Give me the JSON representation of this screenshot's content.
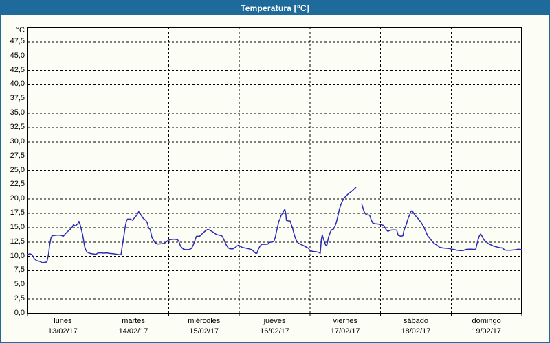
{
  "window": {
    "title": "Temperatura [°C]"
  },
  "colors": {
    "title_bar": "#1d6a9b",
    "window_border": "#1d6a9b",
    "background": "#fcfdf5",
    "title_text": "#ffffff",
    "line": "#2a2ab4",
    "grid": "#000000"
  },
  "chart_data": {
    "type": "line",
    "title": "Temperatura [°C]",
    "y_axis": {
      "unit_label": "°C",
      "tick_labels": [
        "47,5",
        "45,0",
        "42,5",
        "40,0",
        "37,5",
        "35,0",
        "32,5",
        "30,0",
        "27,5",
        "25,0",
        "22,5",
        "20,0",
        "17,5",
        "15,0",
        "12,5",
        "10,0",
        "7,5",
        "5,0",
        "2,5",
        "0,0"
      ],
      "range": [
        0,
        50
      ],
      "tick_step": 2.5,
      "gridlines": "dashed"
    },
    "x_axis": {
      "range_hours": [
        0,
        168
      ],
      "hours_per_day": 24,
      "day_gridlines": "dashed",
      "days": [
        {
          "name": "lunes",
          "date": "13/02/17"
        },
        {
          "name": "martes",
          "date": "14/02/17"
        },
        {
          "name": "miércoles",
          "date": "15/02/17"
        },
        {
          "name": "jueves",
          "date": "16/02/17"
        },
        {
          "name": "viernes",
          "date": "17/02/17"
        },
        {
          "name": "sábado",
          "date": "18/02/17"
        },
        {
          "name": "domingo",
          "date": "19/02/17"
        }
      ]
    },
    "series": [
      {
        "name": "Temperatura",
        "unit": "°C",
        "segments": [
          [
            [
              0,
              10.3
            ],
            [
              0.8,
              10.45
            ],
            [
              1.5,
              10.3
            ],
            [
              2.3,
              9.6
            ],
            [
              3.1,
              9.25
            ],
            [
              4.3,
              9.1
            ],
            [
              5.1,
              8.85
            ],
            [
              5.8,
              8.95
            ],
            [
              6.6,
              9.0
            ],
            [
              7.2,
              10.5
            ],
            [
              7.5,
              11.9
            ],
            [
              8,
              13.2
            ],
            [
              8.3,
              13.55
            ],
            [
              9,
              13.65
            ],
            [
              10,
              13.7
            ],
            [
              11,
              13.7
            ],
            [
              11.7,
              13.65
            ],
            [
              12.1,
              13.45
            ],
            [
              12.8,
              13.9
            ],
            [
              13.6,
              14.3
            ],
            [
              14.4,
              14.65
            ],
            [
              15.2,
              15.1
            ],
            [
              15.6,
              15.5
            ],
            [
              16.3,
              15.3
            ],
            [
              17.1,
              15.7
            ],
            [
              17.5,
              16.1
            ],
            [
              17.9,
              15.5
            ],
            [
              18.3,
              14.7
            ],
            [
              18.7,
              13.9
            ],
            [
              19.1,
              12.75
            ],
            [
              19.4,
              11.75
            ],
            [
              19.8,
              11.15
            ],
            [
              20.2,
              10.75
            ],
            [
              21,
              10.55
            ],
            [
              21.8,
              10.45
            ],
            [
              23.3,
              10.35
            ],
            [
              24,
              10.6
            ],
            [
              25,
              10.6
            ],
            [
              26,
              10.55
            ],
            [
              27,
              10.6
            ],
            [
              28,
              10.5
            ],
            [
              29,
              10.45
            ],
            [
              30,
              10.4
            ],
            [
              31,
              10.3
            ],
            [
              31.8,
              10.3
            ],
            [
              32.3,
              12.1
            ],
            [
              32.8,
              13.7
            ],
            [
              33.2,
              15.1
            ],
            [
              33.6,
              16.1
            ],
            [
              34,
              16.5
            ],
            [
              35,
              16.5
            ],
            [
              35.7,
              16.3
            ],
            [
              36.3,
              16.7
            ],
            [
              37,
              17.1
            ],
            [
              37.5,
              17.5
            ],
            [
              37.8,
              17.8
            ],
            [
              38.2,
              17.5
            ],
            [
              38.6,
              17.2
            ],
            [
              39,
              16.9
            ],
            [
              39.4,
              16.6
            ],
            [
              39.8,
              16.45
            ],
            [
              40.2,
              16.3
            ],
            [
              40.7,
              15.9
            ],
            [
              41.2,
              14.9
            ],
            [
              41.7,
              14.7
            ],
            [
              42.3,
              13.3
            ],
            [
              42.9,
              12.75
            ],
            [
              43.4,
              12.35
            ],
            [
              44.3,
              12.15
            ],
            [
              45.5,
              12.2
            ],
            [
              46.5,
              12.25
            ],
            [
              47.3,
              12.55
            ],
            [
              47.8,
              12.8
            ],
            [
              48.5,
              12.9
            ],
            [
              49,
              12.95
            ],
            [
              49.6,
              13.0
            ],
            [
              50.4,
              12.95
            ],
            [
              51,
              12.9
            ],
            [
              51.5,
              12.55
            ],
            [
              52,
              11.8
            ],
            [
              52.4,
              11.55
            ],
            [
              53,
              11.25
            ],
            [
              54,
              11.15
            ],
            [
              55,
              11.2
            ],
            [
              55.8,
              11.4
            ],
            [
              56.3,
              11.95
            ],
            [
              56.8,
              12.6
            ],
            [
              57.4,
              13.5
            ],
            [
              58.5,
              13.5
            ],
            [
              59.3,
              13.9
            ],
            [
              59.7,
              14.1
            ],
            [
              60.5,
              14.45
            ],
            [
              61.3,
              14.7
            ],
            [
              62,
              14.55
            ],
            [
              62.5,
              14.4
            ],
            [
              63.3,
              14.15
            ],
            [
              64.2,
              13.8
            ],
            [
              65,
              13.7
            ],
            [
              66,
              13.6
            ],
            [
              66.5,
              13.2
            ],
            [
              67.1,
              12.5
            ],
            [
              67.6,
              11.95
            ],
            [
              68.2,
              11.5
            ],
            [
              68.8,
              11.3
            ],
            [
              69.8,
              11.3
            ],
            [
              70.6,
              11.55
            ],
            [
              71.2,
              11.8
            ],
            [
              71.8,
              11.95
            ],
            [
              72.3,
              11.75
            ],
            [
              73,
              11.55
            ],
            [
              74,
              11.45
            ],
            [
              75.3,
              11.3
            ],
            [
              76.3,
              11.15
            ],
            [
              77.1,
              10.75
            ],
            [
              77.6,
              10.5
            ],
            [
              78,
              10.55
            ],
            [
              78.4,
              11.15
            ],
            [
              79,
              11.75
            ],
            [
              79.6,
              12.1
            ],
            [
              80.7,
              12.1
            ],
            [
              81.7,
              12.15
            ],
            [
              82.3,
              12.45
            ],
            [
              83.3,
              12.5
            ],
            [
              83.8,
              12.7
            ],
            [
              84.2,
              13.3
            ],
            [
              84.6,
              14.3
            ],
            [
              85,
              15.1
            ],
            [
              85.4,
              16.1
            ],
            [
              85.8,
              16.5
            ],
            [
              86.2,
              17.15
            ],
            [
              86.6,
              17.45
            ],
            [
              87,
              17.8
            ],
            [
              87.3,
              18.1
            ],
            [
              87.5,
              18.15
            ],
            [
              87.8,
              17.4
            ],
            [
              88,
              16.3
            ],
            [
              88.6,
              16.2
            ],
            [
              89.3,
              16.15
            ],
            [
              89.7,
              15.5
            ],
            [
              90.1,
              14.9
            ],
            [
              90.5,
              14.1
            ],
            [
              90.9,
              13.4
            ],
            [
              91.3,
              12.85
            ],
            [
              91.7,
              12.5
            ],
            [
              92.1,
              12.3
            ],
            [
              92.8,
              12.1
            ],
            [
              93.9,
              11.85
            ],
            [
              94.8,
              11.6
            ],
            [
              95.5,
              11.4
            ],
            [
              96,
              11.0
            ],
            [
              97,
              10.85
            ],
            [
              98,
              10.8
            ],
            [
              99,
              10.7
            ],
            [
              99.5,
              10.5
            ],
            [
              99.9,
              12.95
            ],
            [
              100.2,
              13.75
            ],
            [
              100.6,
              13.0
            ],
            [
              101,
              12.5
            ],
            [
              101.3,
              12.0
            ],
            [
              101.7,
              11.85
            ],
            [
              102.3,
              13.3
            ],
            [
              102.9,
              14.2
            ],
            [
              103.3,
              14.6
            ],
            [
              104,
              14.75
            ],
            [
              104.5,
              15.2
            ],
            [
              105,
              16.0
            ],
            [
              105.5,
              17.0
            ],
            [
              106,
              18.2
            ],
            [
              106.5,
              19.0
            ],
            [
              107,
              19.6
            ],
            [
              107.5,
              20.1
            ],
            [
              108,
              20.4
            ],
            [
              109,
              20.9
            ],
            [
              110,
              21.3
            ],
            [
              110.7,
              21.6
            ],
            [
              111.3,
              21.9
            ],
            [
              111.6,
              22.0
            ]
          ],
          [
            [
              113.6,
              19.15
            ],
            [
              114,
              18.45
            ],
            [
              114.4,
              17.8
            ],
            [
              114.8,
              17.45
            ],
            [
              115.3,
              17.25
            ],
            [
              116.3,
              17.2
            ],
            [
              116.8,
              16.4
            ],
            [
              117.3,
              15.85
            ],
            [
              118,
              15.7
            ],
            [
              119,
              15.65
            ],
            [
              120,
              15.55
            ],
            [
              121,
              15.4
            ],
            [
              121.7,
              14.85
            ],
            [
              122,
              14.6
            ],
            [
              122.5,
              14.35
            ],
            [
              123.2,
              14.55
            ],
            [
              124,
              14.6
            ],
            [
              125,
              14.6
            ],
            [
              125.5,
              14.55
            ],
            [
              126,
              13.65
            ],
            [
              127,
              13.5
            ],
            [
              127.6,
              13.6
            ],
            [
              127.9,
              14.4
            ],
            [
              128.3,
              15.0
            ],
            [
              128.8,
              15.6
            ],
            [
              129.1,
              16.2
            ],
            [
              129.5,
              16.8
            ],
            [
              130,
              17.4
            ],
            [
              130.3,
              17.8
            ],
            [
              130.7,
              18.0
            ],
            [
              131.4,
              17.4
            ],
            [
              131.8,
              17.1
            ],
            [
              132.3,
              16.9
            ],
            [
              133,
              16.4
            ],
            [
              133.7,
              16.0
            ],
            [
              134.6,
              15.2
            ],
            [
              135.3,
              14.4
            ],
            [
              136,
              13.6
            ],
            [
              137,
              13.0
            ],
            [
              137.7,
              12.5
            ],
            [
              138.4,
              12.2
            ],
            [
              139.3,
              11.9
            ],
            [
              140,
              11.6
            ],
            [
              141.2,
              11.45
            ],
            [
              142.3,
              11.4
            ],
            [
              143.5,
              11.35
            ],
            [
              144,
              11.25
            ],
            [
              145,
              11.2
            ],
            [
              146,
              11.05
            ],
            [
              147,
              11.0
            ],
            [
              148,
              11.0
            ],
            [
              149,
              11.2
            ],
            [
              150,
              11.25
            ],
            [
              151,
              11.25
            ],
            [
              152,
              11.2
            ],
            [
              152.4,
              11.3
            ],
            [
              152.8,
              12.2
            ],
            [
              153.2,
              13.0
            ],
            [
              153.6,
              13.6
            ],
            [
              154,
              13.9
            ],
            [
              154.4,
              13.6
            ],
            [
              154.8,
              13.2
            ],
            [
              155.2,
              12.85
            ],
            [
              155.6,
              12.65
            ],
            [
              156,
              12.5
            ],
            [
              156.7,
              12.2
            ],
            [
              157.5,
              12.0
            ],
            [
              158.3,
              11.8
            ],
            [
              159,
              11.7
            ],
            [
              159.8,
              11.6
            ],
            [
              160.6,
              11.5
            ],
            [
              161.4,
              11.45
            ],
            [
              162.2,
              11.1
            ],
            [
              163,
              11.05
            ],
            [
              164,
              11.05
            ],
            [
              165,
              11.1
            ],
            [
              166,
              11.15
            ],
            [
              166.8,
              11.25
            ],
            [
              167.6,
              11.2
            ],
            [
              168,
              11.15
            ]
          ]
        ]
      }
    ]
  }
}
